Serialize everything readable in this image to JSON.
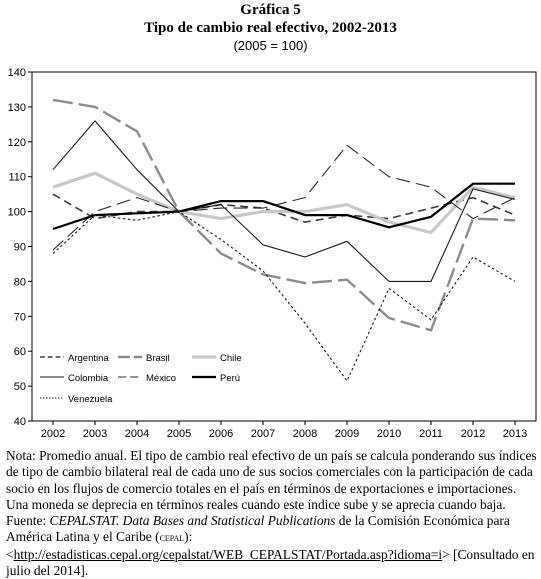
{
  "figure": {
    "label": "Gráfica 5",
    "title": "Tipo de cambio real efectivo, 2002-2013",
    "subtitle": "(2005 = 100)"
  },
  "chart_data": {
    "type": "line",
    "x": [
      "2002",
      "2003",
      "2004",
      "2005",
      "2006",
      "2007",
      "2008",
      "2009",
      "2010",
      "2011",
      "2012",
      "2013"
    ],
    "ylim": [
      40,
      140
    ],
    "yticks": [
      40,
      50,
      60,
      70,
      80,
      90,
      100,
      110,
      120,
      130,
      140
    ],
    "grid": false,
    "legend_position": "bottom-left",
    "series": [
      {
        "name": "Argentina",
        "values": [
          105,
          98,
          100,
          100,
          102,
          101,
          97,
          99,
          98,
          101,
          104,
          99
        ],
        "color": "#3a3a3a",
        "dash": "8 5",
        "width": 1.6
      },
      {
        "name": "Brasil",
        "values": [
          132,
          130,
          123,
          100,
          88,
          82,
          79.5,
          80.5,
          69.5,
          66,
          98,
          97.5
        ],
        "color": "#8c8c8c",
        "dash": "20 6",
        "width": 2.4
      },
      {
        "name": "Chile",
        "values": [
          107,
          111,
          105,
          100,
          98,
          100,
          100,
          102,
          97,
          94,
          107,
          104
        ],
        "color": "#c8c8c8",
        "dash": "",
        "width": 3.2
      },
      {
        "name": "Colombia",
        "values": [
          112,
          126,
          112,
          100,
          102,
          90.5,
          87,
          91.5,
          80,
          80,
          106.5,
          103.5
        ],
        "color": "#1a1a1a",
        "dash": "",
        "width": 1.1
      },
      {
        "name": "México",
        "values": [
          89,
          100,
          104,
          100,
          101,
          101,
          104,
          119,
          110,
          107,
          98,
          104
        ],
        "color": "#2a2a2a",
        "dash": "14 6",
        "width": 1.1
      },
      {
        "name": "Perú",
        "values": [
          95,
          99,
          99.5,
          100,
          103,
          103,
          99,
          99,
          95.5,
          98.5,
          108,
          108
        ],
        "color": "#000000",
        "dash": "",
        "width": 2.2
      },
      {
        "name": "Venezuela",
        "values": [
          88,
          99,
          97.5,
          100,
          92,
          83,
          68,
          51.5,
          78,
          69,
          87,
          80
        ],
        "color": "#1a1a1a",
        "dash": "2.5 2.5",
        "width": 1.1
      }
    ]
  },
  "notes": {
    "nota": "Nota: Promedio anual. El tipo de cambio real efectivo de un país se calcula ponderando sus índices de tipo de cambio bilateral real de cada uno de sus socios comerciales con la participación de cada socio en los flujos de comercio totales en el país en términos de exportaciones e importaciones. Una moneda se deprecia en términos reales cuando este índice sube y se aprecia cuando baja.",
    "fuente_label": "Fuente: ",
    "fuente_source": "CEPALSTAT. Data Bases and Statistical Publications",
    "fuente_mid": " de la Comisión Económica para América Latina y el Caribe ",
    "fuente_org": "cepal",
    "fuente_sep": "): <",
    "fuente_url": "http://estadisticas.cepal.org/cepalstat/WEB_CEPALSTAT/Portada.asp?idioma=i",
    "fuente_end": "> [Consultado en julio del 2014]."
  }
}
